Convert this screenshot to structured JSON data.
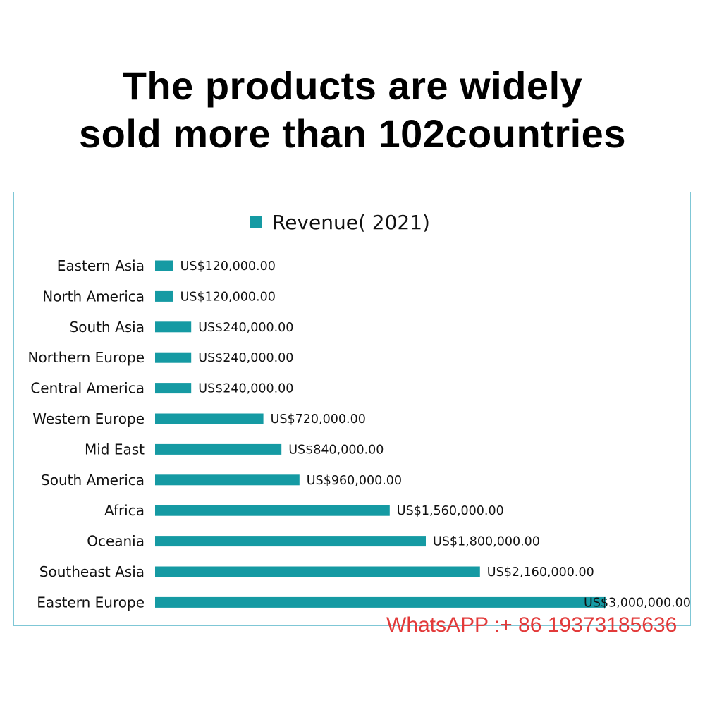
{
  "headline": {
    "line1": "The products are widely",
    "line2": "sold more than 102countries"
  },
  "watermark": "WhatsAPP :+ 86 19373185636",
  "colors": {
    "bar": "#159aa3",
    "frame_border": "#7fc7d6",
    "watermark": "#e23a3a"
  },
  "chart_data": {
    "type": "bar",
    "orientation": "horizontal",
    "legend": "top-center",
    "grid": false,
    "categories": [
      "Eastern Asia",
      "North America",
      "South Asia",
      "Northern Europe",
      "Central America",
      "Western Europe",
      "Mid East",
      "South America",
      "Africa",
      "Oceania",
      "Southeast Asia",
      "Eastern Europe"
    ],
    "series": [
      {
        "name": "Revenue( 2021)",
        "values": [
          120000,
          120000,
          240000,
          240000,
          240000,
          720000,
          840000,
          960000,
          1560000,
          1800000,
          2160000,
          3000000
        ],
        "labels": [
          "US$120,000.00",
          "US$120,000.00",
          "US$240,000.00",
          "US$240,000.00",
          "US$240,000.00",
          "US$720,000.00",
          "US$840,000.00",
          "US$960,000.00",
          "US$1,560,000.00",
          "US$1,800,000.00",
          "US$2,160,000.00",
          "US$3,000,000.00"
        ]
      }
    ],
    "xlim": [
      0,
      3000000
    ]
  }
}
